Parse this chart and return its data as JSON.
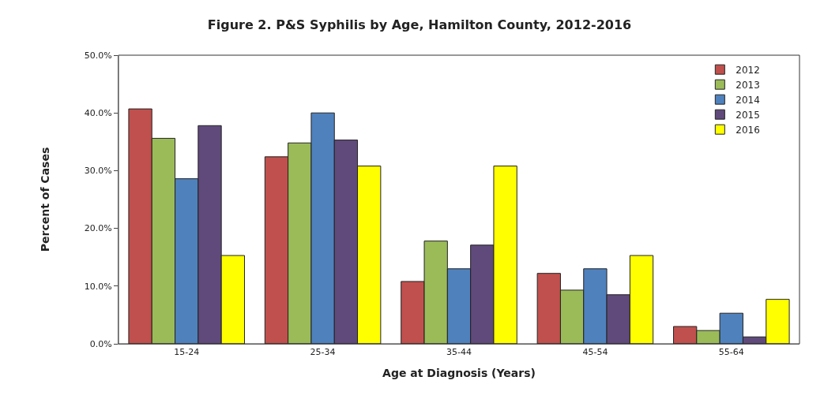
{
  "chart_data": {
    "type": "bar",
    "title": "Figure 2. P&S Syphilis by Age, Hamilton County, 2012-2016",
    "xlabel": "Age at Diagnosis (Years)",
    "ylabel": "Percent of Cases",
    "categories": [
      "15-24",
      "25-34",
      "35-44",
      "45-54",
      "55-64"
    ],
    "series": [
      {
        "name": "2012",
        "color": "#c0504d",
        "values": [
          40.7,
          32.4,
          10.8,
          12.2,
          3.0
        ]
      },
      {
        "name": "2013",
        "color": "#9bbb59",
        "values": [
          35.6,
          34.8,
          17.8,
          9.3,
          2.3
        ]
      },
      {
        "name": "2014",
        "color": "#4f81bd",
        "values": [
          28.6,
          40.0,
          13.0,
          13.0,
          5.3
        ]
      },
      {
        "name": "2015",
        "color": "#604a7b",
        "values": [
          37.8,
          35.3,
          17.1,
          8.5,
          1.2
        ]
      },
      {
        "name": "2016",
        "color": "#ffff00",
        "values": [
          15.3,
          30.8,
          30.8,
          15.3,
          7.7
        ]
      }
    ],
    "ylim": [
      0,
      50
    ],
    "yticks": [
      {
        "value": 0,
        "label": "0.0%"
      },
      {
        "value": 10,
        "label": "10.0%"
      },
      {
        "value": 20,
        "label": "20.0%"
      },
      {
        "value": 30,
        "label": "30.0%"
      },
      {
        "value": 40,
        "label": "40.0%"
      },
      {
        "value": 50,
        "label": "50.0%"
      }
    ],
    "legend": "top right"
  }
}
